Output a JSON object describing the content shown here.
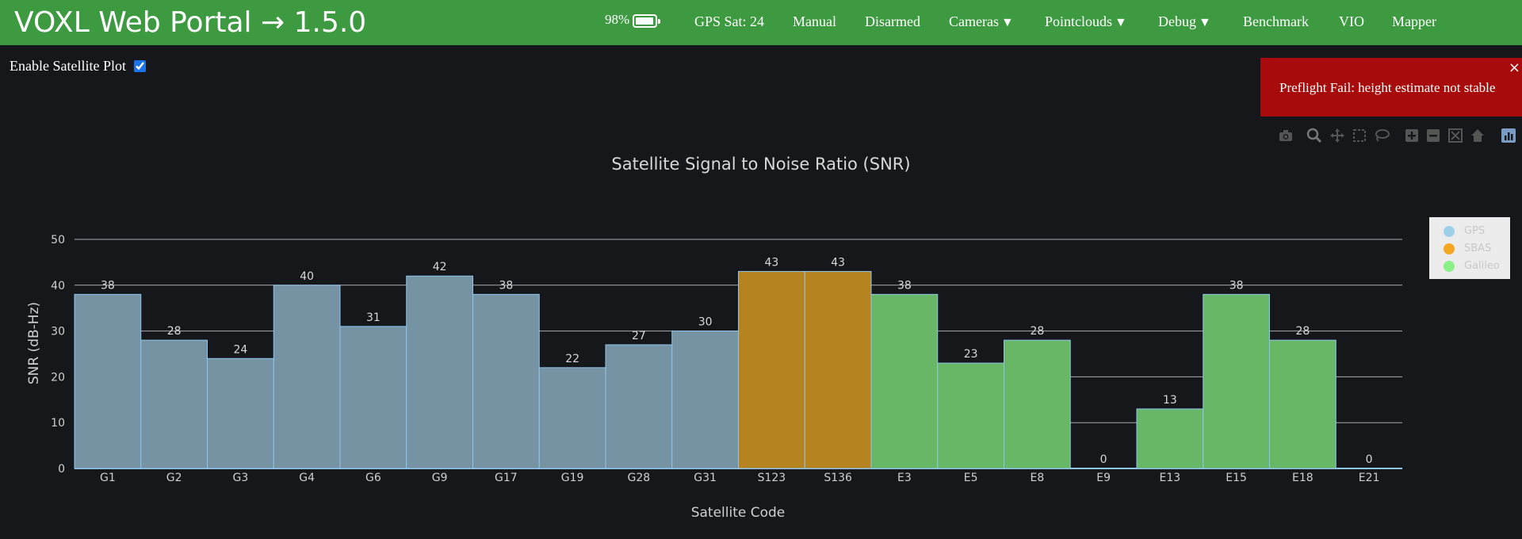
{
  "header": {
    "title": "VOXL Web Portal → 1.5.0",
    "battery_percent": "98%",
    "battery_level": 0.98,
    "gps_sat": "GPS Sat: 24",
    "mode": "Manual",
    "arm_state": "Disarmed",
    "menus": {
      "cameras": "Cameras",
      "pointclouds": "Pointclouds",
      "debug": "Debug"
    },
    "links": {
      "benchmark": "Benchmark",
      "vio": "VIO",
      "mapper": "Mapper"
    },
    "dropdown_caret": "▼"
  },
  "controls": {
    "enable_satellite_plot": "Enable Satellite Plot",
    "enabled": true
  },
  "notification": {
    "message": "Preflight Fail: height estimate not stable",
    "close": "×"
  },
  "modebar_icons": [
    "camera-icon",
    "zoom-icon",
    "pan-icon",
    "box-select-icon",
    "lasso-icon",
    "zoom-in-icon",
    "zoom-out-icon",
    "autoscale-icon",
    "reset-axes-icon",
    "plotly-logo-icon"
  ],
  "colors": {
    "header_bg": "#3d9a41",
    "page_bg": "#16171b",
    "gps": "#7593a3",
    "sbas": "#b5831f",
    "galileo": "#68b767",
    "bar_edge": "#8ec5ec",
    "gps_legend": "#9fd0ea",
    "sbas_legend": "#f5a623",
    "galileo_legend": "#8cf08a",
    "toast_bg": "#a70b0b"
  },
  "chart_data": {
    "type": "bar",
    "title": "Satellite Signal to Noise Ratio (SNR)",
    "xlabel": "Satellite Code",
    "ylabel": "SNR (dB-Hz)",
    "ylim": [
      0,
      50
    ],
    "yticks": [
      0,
      10,
      20,
      30,
      40,
      50
    ],
    "grid": true,
    "legend_position": "top-right",
    "categories": [
      "G1",
      "G2",
      "G3",
      "G4",
      "G6",
      "G9",
      "G17",
      "G19",
      "G28",
      "G31",
      "S123",
      "S136",
      "E3",
      "E5",
      "E8",
      "E9",
      "E13",
      "E15",
      "E18",
      "E21"
    ],
    "values": [
      38,
      28,
      24,
      40,
      31,
      42,
      38,
      22,
      27,
      30,
      43,
      43,
      38,
      23,
      28,
      0,
      13,
      38,
      28,
      0
    ],
    "groups": [
      "GPS",
      "GPS",
      "GPS",
      "GPS",
      "GPS",
      "GPS",
      "GPS",
      "GPS",
      "GPS",
      "GPS",
      "SBAS",
      "SBAS",
      "Galileo",
      "Galileo",
      "Galileo",
      "Galileo",
      "Galileo",
      "Galileo",
      "Galileo",
      "Galileo"
    ],
    "legend": [
      "GPS",
      "SBAS",
      "Galileo"
    ]
  }
}
